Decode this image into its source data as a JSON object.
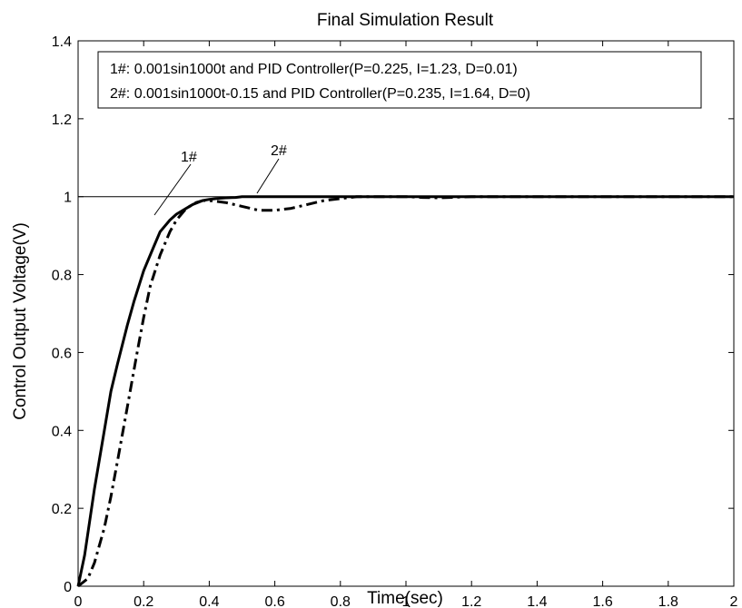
{
  "chart_data": {
    "type": "line",
    "title": "Final Simulation Result",
    "xlabel": "Time(sec)",
    "ylabel": "Control Output Voltage(V)",
    "xlim": [
      0,
      2
    ],
    "ylim": [
      0,
      1.4
    ],
    "xticks": [
      "0",
      "0.2",
      "0.4",
      "0.6",
      "0.8",
      "1",
      "1.2",
      "1.4",
      "1.6",
      "1.8",
      "2"
    ],
    "yticks": [
      "0",
      "0.2",
      "0.4",
      "0.6",
      "0.8",
      "1",
      "1.2",
      "1.4"
    ],
    "grid": false,
    "reference_line": {
      "y": 1
    },
    "legend": {
      "placement": "top-left",
      "entries": [
        "1#: 0.001sin1000t and PID Controller(P=0.225, I=1.23, D=0.01)",
        "2#: 0.001sin1000t-0.15 and PID Controller(P=0.235, I=1.64, D=0)"
      ]
    },
    "annotations": [
      {
        "text": "1#",
        "series": 0
      },
      {
        "text": "2#",
        "series": 1
      }
    ],
    "series": [
      {
        "name": "1#",
        "style": "solid",
        "x": [
          0,
          0.02,
          0.05,
          0.08,
          0.1,
          0.12,
          0.15,
          0.17,
          0.2,
          0.23,
          0.25,
          0.28,
          0.3,
          0.33,
          0.35,
          0.38,
          0.4,
          0.42,
          0.45,
          0.48,
          0.5,
          0.6,
          0.8,
          1.0,
          1.2,
          1.5,
          2.0
        ],
        "y": [
          0,
          0.08,
          0.25,
          0.4,
          0.5,
          0.57,
          0.67,
          0.73,
          0.81,
          0.87,
          0.91,
          0.94,
          0.955,
          0.97,
          0.98,
          0.99,
          0.993,
          0.995,
          0.997,
          0.998,
          1.0,
          1.0,
          1.0,
          1.0,
          1.0,
          1.0,
          1.0
        ]
      },
      {
        "name": "2#",
        "style": "dash-dot",
        "x": [
          0,
          0.03,
          0.05,
          0.08,
          0.1,
          0.12,
          0.15,
          0.18,
          0.2,
          0.22,
          0.25,
          0.28,
          0.3,
          0.33,
          0.36,
          0.38,
          0.4,
          0.45,
          0.5,
          0.55,
          0.6,
          0.65,
          0.7,
          0.75,
          0.8,
          0.85,
          0.9,
          1.0,
          1.05,
          1.1,
          1.2,
          1.5,
          2.0
        ],
        "y": [
          0,
          0.02,
          0.06,
          0.15,
          0.23,
          0.32,
          0.46,
          0.6,
          0.69,
          0.77,
          0.85,
          0.91,
          0.94,
          0.97,
          0.985,
          0.99,
          0.99,
          0.985,
          0.975,
          0.965,
          0.965,
          0.97,
          0.98,
          0.99,
          0.995,
          1.0,
          1.0,
          1.0,
          0.998,
          0.997,
          1.0,
          1.0,
          1.0
        ]
      }
    ]
  }
}
